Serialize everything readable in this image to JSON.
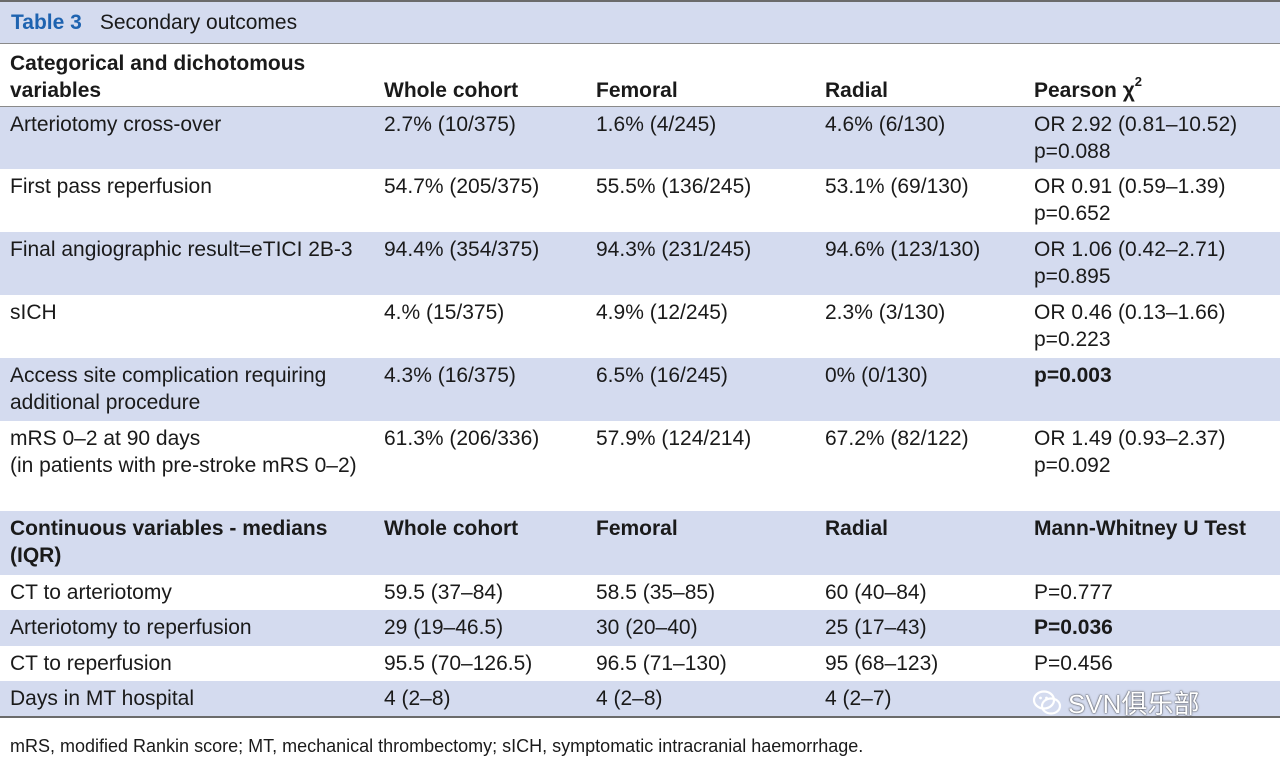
{
  "caption": {
    "label": "Table 3",
    "title": "Secondary outcomes"
  },
  "section1": {
    "header": {
      "col1": "Categorical and dichotomous variables",
      "col2": "Whole cohort",
      "col3": "Femoral",
      "col4": "Radial",
      "col5": "Pearson χ",
      "col5_sup": "2"
    },
    "rows": [
      {
        "label": "Arteriotomy cross-over",
        "whole": "2.7% (10/375)",
        "femoral": "1.6% (4/245)",
        "radial": "4.6% (6/130)",
        "stat_line1": "OR 2.92 (0.81–10.52)",
        "stat_line2": "p=0.088"
      },
      {
        "label": "First pass reperfusion",
        "whole": "54.7% (205/375)",
        "femoral": "55.5% (136/245)",
        "radial": "53.1% (69/130)",
        "stat_line1": "OR 0.91 (0.59–1.39)",
        "stat_line2": "p=0.652"
      },
      {
        "label": "Final angiographic result=eTICI 2B-3",
        "whole": "94.4% (354/375)",
        "femoral": "94.3% (231/245)",
        "radial": "94.6% (123/130)",
        "stat_line1": "OR 1.06 (0.42–2.71)",
        "stat_line2": "p=0.895"
      },
      {
        "label": "sICH",
        "whole": "4.% (15/375)",
        "femoral": "4.9% (12/245)",
        "radial": "2.3% (3/130)",
        "stat_line1": "OR 0.46 (0.13–1.66)",
        "stat_line2": "p=0.223"
      },
      {
        "label": "Access site complication requiring additional procedure",
        "whole": "4.3% (16/375)",
        "femoral": "6.5% (16/245)",
        "radial": "0% (0/130)",
        "stat_line1": "p=0.003",
        "stat_line2": ""
      },
      {
        "label_line1": "mRS 0–2 at 90 days",
        "label_line2": "(in patients with pre-stroke mRS 0–2)",
        "whole": "61.3% (206/336)",
        "femoral": "57.9% (124/214)",
        "radial": "67.2% (82/122)",
        "stat_line1": "OR 1.49 (0.93–2.37)",
        "stat_line2": "p=0.092"
      }
    ]
  },
  "section2": {
    "header": {
      "col1": "Continuous variables - medians (IQR)",
      "col2": "Whole cohort",
      "col3": "Femoral",
      "col4": "Radial",
      "col5": "Mann-Whitney U Test"
    },
    "rows": [
      {
        "label": "CT to arteriotomy",
        "whole": "59.5 (37–84)",
        "femoral": "58.5 (35–85)",
        "radial": "60 (40–84)",
        "stat": "P=0.777"
      },
      {
        "label": "Arteriotomy to reperfusion",
        "whole": "29 (19–46.5)",
        "femoral": "30 (20–40)",
        "radial": "25 (17–43)",
        "stat": "P=0.036"
      },
      {
        "label": "CT to reperfusion",
        "whole": "95.5 (70–126.5)",
        "femoral": "96.5 (71–130)",
        "radial": "95 (68–123)",
        "stat": "P=0.456"
      },
      {
        "label": "Days in MT hospital",
        "whole": "4 (2–8)",
        "femoral": "4 (2–8)",
        "radial": "4 (2–7)",
        "stat": ""
      }
    ]
  },
  "footnote": "mRS, modified Rankin score; MT, mechanical thrombectomy; sICH, symptomatic intracranial haemorrhage.",
  "watermark": {
    "text": "SVN俱乐部",
    "icon": "wechat-icon"
  },
  "colors": {
    "caption_label": "#1e63b0",
    "shaded_row": "#d4dbef"
  }
}
